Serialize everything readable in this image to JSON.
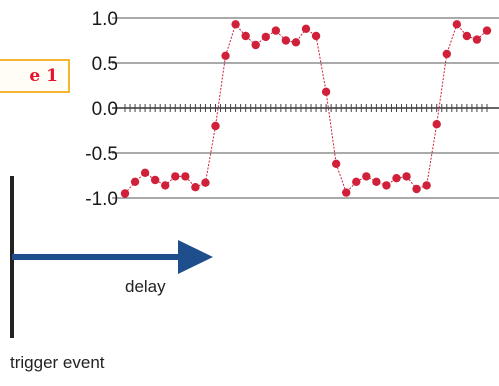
{
  "figure_tag": {
    "text": "e 1",
    "border_color": "#f2b632",
    "text_color": "#e8102a"
  },
  "annotations": {
    "delay_label": "delay",
    "trigger_label": "trigger event",
    "arrow_color": "#1f4e8c"
  },
  "chart_data": {
    "type": "line",
    "title": "",
    "xlabel": "",
    "ylabel": "",
    "y_ticks": [
      "1.0",
      "0.5",
      "0.0",
      "-0.5",
      "-1.0"
    ],
    "y_tick_values": [
      1.0,
      0.5,
      0.0,
      -0.5,
      -1.0
    ],
    "ylim": [
      -1.0,
      1.0
    ],
    "xlim": [
      0,
      36
    ],
    "grid": "horizontal",
    "marker_color": "#d0203a",
    "series": [
      {
        "x": [
          0,
          1,
          2,
          3,
          4,
          5,
          6,
          7,
          8,
          9,
          10,
          11,
          12,
          13,
          14,
          15,
          16,
          17,
          18,
          19,
          20,
          21,
          22,
          23,
          24,
          25,
          26,
          27,
          28,
          29,
          30,
          31,
          32,
          33,
          34,
          35,
          36
        ],
        "values": [
          -0.95,
          -0.82,
          -0.72,
          -0.8,
          -0.86,
          -0.76,
          -0.76,
          -0.88,
          -0.83,
          -0.2,
          0.58,
          0.93,
          0.8,
          0.7,
          0.79,
          0.86,
          0.75,
          0.73,
          0.88,
          0.8,
          0.18,
          -0.62,
          -0.94,
          -0.82,
          -0.76,
          -0.82,
          -0.86,
          -0.78,
          -0.76,
          -0.9,
          -0.86,
          -0.18,
          0.6,
          0.93,
          0.8,
          0.76,
          0.86
        ]
      }
    ]
  }
}
